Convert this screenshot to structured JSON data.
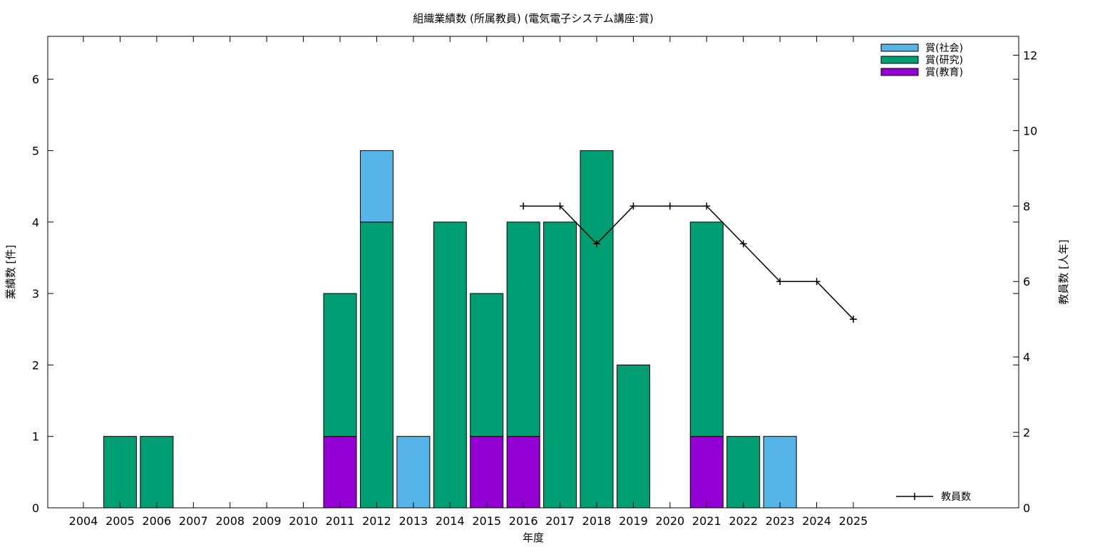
{
  "chart_data": {
    "type": "bar",
    "title": "組織業績数 (所属教員) (電気電子システム講座:賞)",
    "xlabel": "年度",
    "ylabel": "業績数 [件]",
    "y2label": "教員数 [人年]",
    "categories": [
      "2004",
      "2005",
      "2006",
      "2007",
      "2008",
      "2009",
      "2010",
      "2011",
      "2012",
      "2013",
      "2014",
      "2015",
      "2016",
      "2017",
      "2018",
      "2019",
      "2020",
      "2021",
      "2022",
      "2023",
      "2024",
      "2025"
    ],
    "ylim": [
      0,
      6.6
    ],
    "y2lim": [
      0,
      12.5
    ],
    "yticks": [
      0,
      1,
      2,
      3,
      4,
      5,
      6
    ],
    "y2ticks": [
      0,
      2,
      4,
      6,
      8,
      10,
      12
    ],
    "stacked": true,
    "series": [
      {
        "name": "賞(教育)",
        "color": "#9400d3",
        "values": [
          0,
          0,
          0,
          0,
          0,
          0,
          0,
          1,
          0,
          0,
          0,
          1,
          1,
          0,
          0,
          0,
          0,
          1,
          0,
          0,
          0,
          0
        ]
      },
      {
        "name": "賞(研究)",
        "color": "#009e73",
        "values": [
          0,
          1,
          1,
          0,
          0,
          0,
          0,
          2,
          4,
          0,
          4,
          2,
          3,
          4,
          5,
          2,
          0,
          3,
          1,
          0,
          0,
          0
        ]
      },
      {
        "name": "賞(社会)",
        "color": "#56b4e9",
        "values": [
          0,
          0,
          0,
          0,
          0,
          0,
          0,
          0,
          1,
          1,
          0,
          0,
          0,
          0,
          0,
          0,
          0,
          0,
          0,
          1,
          0,
          0
        ]
      }
    ],
    "line_series": {
      "name": "教員数",
      "axis": "y2",
      "color": "#000000",
      "points": [
        {
          "x": "2016",
          "y": 8
        },
        {
          "x": "2017",
          "y": 8
        },
        {
          "x": "2018",
          "y": 7
        },
        {
          "x": "2019",
          "y": 8
        },
        {
          "x": "2020",
          "y": 8
        },
        {
          "x": "2021",
          "y": 8
        },
        {
          "x": "2022",
          "y": 7
        },
        {
          "x": "2023",
          "y": 6
        },
        {
          "x": "2024",
          "y": 6
        },
        {
          "x": "2025",
          "y": 5
        }
      ]
    },
    "legend_order": [
      "賞(社会)",
      "賞(研究)",
      "賞(教育)"
    ],
    "legend_position": "top-right",
    "line_legend_position": "bottom-right",
    "grid": false
  }
}
